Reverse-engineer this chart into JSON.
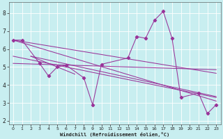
{
  "bg_color": "#c8eef0",
  "line_color": "#993399",
  "xlabel": "Windchill (Refroidissement éolien,°C)",
  "xlim": [
    -0.5,
    23.5
  ],
  "ylim": [
    1.8,
    8.6
  ],
  "yticks": [
    2,
    3,
    4,
    5,
    6,
    7,
    8
  ],
  "xticks": [
    0,
    1,
    2,
    3,
    4,
    5,
    6,
    7,
    8,
    9,
    10,
    11,
    12,
    13,
    14,
    15,
    16,
    17,
    18,
    19,
    20,
    21,
    22,
    23
  ],
  "data_line": {
    "x": [
      0,
      1,
      3,
      4,
      5,
      6,
      8,
      9,
      10,
      13,
      14,
      15,
      16,
      17,
      18,
      19,
      21,
      22,
      23
    ],
    "y": [
      6.5,
      6.5,
      5.2,
      4.5,
      5.0,
      5.1,
      4.4,
      2.9,
      5.15,
      5.5,
      6.7,
      6.6,
      7.6,
      8.1,
      6.6,
      3.3,
      3.55,
      2.4,
      2.9
    ]
  },
  "trend_lines": [
    {
      "x": [
        0,
        23
      ],
      "y": [
        6.5,
        4.65
      ]
    },
    {
      "x": [
        0,
        23
      ],
      "y": [
        6.5,
        3.1
      ]
    },
    {
      "x": [
        0,
        23
      ],
      "y": [
        5.6,
        3.3
      ]
    },
    {
      "x": [
        0,
        23
      ],
      "y": [
        5.2,
        4.85
      ]
    },
    {
      "x": [
        2,
        23
      ],
      "y": [
        5.6,
        3.35
      ]
    },
    {
      "x": [
        2,
        7
      ],
      "y": [
        5.6,
        4.6
      ]
    }
  ]
}
